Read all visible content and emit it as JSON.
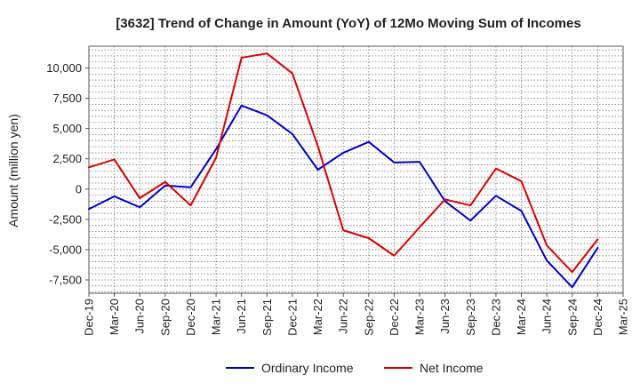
{
  "chart_data": {
    "type": "line",
    "title": "[3632]  Trend of Change in Amount (YoY) of 12Mo Moving Sum of Incomes",
    "xlabel": "",
    "ylabel": "Amount (million yen)",
    "categories": [
      "Dec-19",
      "Mar-20",
      "Jun-20",
      "Sep-20",
      "Dec-20",
      "Mar-21",
      "Jun-21",
      "Sep-21",
      "Dec-21",
      "Mar-22",
      "Jun-22",
      "Sep-22",
      "Dec-22",
      "Mar-23",
      "Jun-23",
      "Sep-23",
      "Dec-23",
      "Mar-24",
      "Jun-24",
      "Sep-24",
      "Dec-24",
      "Mar-25"
    ],
    "ylim": [
      -8600,
      11800
    ],
    "yticks": [
      -7500,
      -5000,
      -2500,
      0,
      2500,
      5000,
      7500,
      10000
    ],
    "ytick_labels": [
      "-7,500",
      "-5,000",
      "-2,500",
      "0",
      "2,500",
      "5,000",
      "7,500",
      "10,000"
    ],
    "grid": true,
    "legend_position": "bottom",
    "series": [
      {
        "name": "Ordinary Income",
        "color": "#0000cc",
        "values": [
          -1650,
          -600,
          -1500,
          300,
          150,
          3300,
          6900,
          6100,
          4550,
          1600,
          3000,
          3900,
          2200,
          2250,
          -1000,
          -2600,
          -550,
          -1800,
          -5900,
          -8100,
          -4850,
          null
        ]
      },
      {
        "name": "Net Income",
        "color": "#dd0000",
        "values": [
          1800,
          2450,
          -750,
          600,
          -1350,
          2600,
          10850,
          11200,
          9550,
          3550,
          -3400,
          -4050,
          -5500,
          -3150,
          -850,
          -1350,
          1700,
          650,
          -4650,
          -6850,
          -4150,
          null
        ]
      }
    ]
  }
}
